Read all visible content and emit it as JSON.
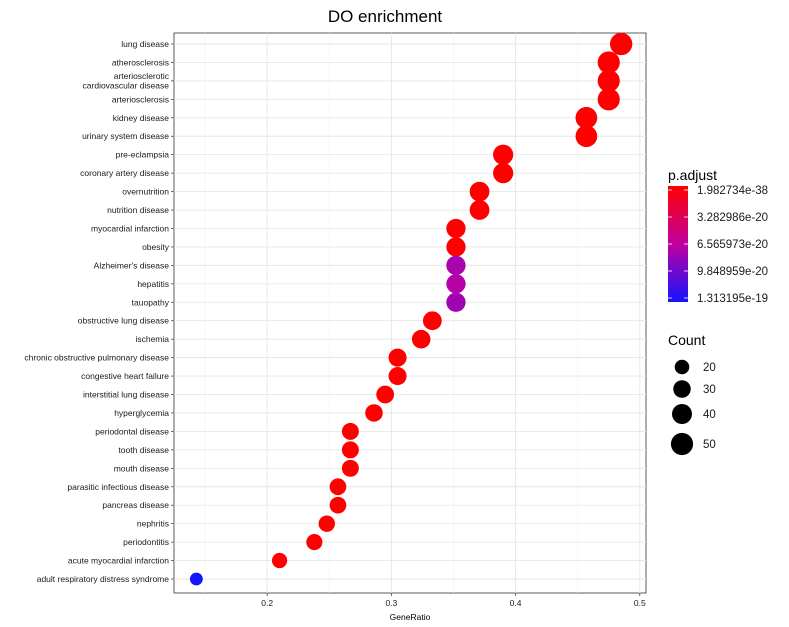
{
  "chart_data": {
    "type": "scatter",
    "title": "DO enrichment",
    "xlabel": "GeneRatio",
    "ylabel": "",
    "xlim": [
      0.125,
      0.505
    ],
    "xticks": [
      0.2,
      0.3,
      0.4,
      0.5
    ],
    "xtick_labels": [
      "0.2",
      "0.3",
      "0.4",
      "0.5"
    ],
    "grid": true,
    "categories": [
      "lung disease",
      "atherosclerosis",
      "arteriosclerotic\ncardiovascular disease",
      "arteriosclerosis",
      "kidney disease",
      "urinary system disease",
      "pre-eclampsia",
      "coronary artery disease",
      "overnutrition",
      "nutrition disease",
      "myocardial infarction",
      "obesity",
      "Alzheimer's disease",
      "hepatitis",
      "tauopathy",
      "obstructive lung disease",
      "ischemia",
      "chronic obstructive pulmonary disease",
      "congestive heart failure",
      "interstitial lung disease",
      "hyperglycemia",
      "periodontal disease",
      "tooth disease",
      "mouth disease",
      "parasitic infectious disease",
      "pancreas disease",
      "nephritis",
      "periodontitis",
      "acute myocardial infarction",
      "adult respiratory distress syndrome"
    ],
    "x": [
      0.485,
      0.475,
      0.475,
      0.475,
      0.457,
      0.457,
      0.39,
      0.39,
      0.371,
      0.371,
      0.352,
      0.352,
      0.352,
      0.352,
      0.352,
      0.333,
      0.324,
      0.305,
      0.305,
      0.295,
      0.286,
      0.267,
      0.267,
      0.267,
      0.257,
      0.257,
      0.248,
      0.238,
      0.21,
      0.143
    ],
    "count": [
      51,
      50,
      50,
      50,
      48,
      48,
      41,
      41,
      39,
      39,
      37,
      37,
      37,
      37,
      37,
      35,
      34,
      32,
      32,
      31,
      30,
      28,
      28,
      28,
      27,
      27,
      26,
      25,
      22,
      15
    ],
    "p_adjust": [
      2e-38,
      2e-38,
      2e-38,
      2e-38,
      2e-38,
      2e-38,
      2e-38,
      2e-38,
      2e-38,
      2e-38,
      2e-38,
      2e-38,
      7.5e-20,
      7e-20,
      7.8e-20,
      2e-38,
      2e-38,
      2e-38,
      2e-38,
      2e-38,
      2e-38,
      2e-38,
      2e-38,
      2e-38,
      2e-38,
      2e-38,
      2e-38,
      2e-38,
      2e-38,
      1.313195e-19
    ],
    "color_legend": {
      "title": "p.adjust",
      "labels": [
        "1.982734e-38",
        "3.282986e-20",
        "6.565973e-20",
        "9.848959e-20",
        "1.313195e-19"
      ],
      "low_color": "#ff0000",
      "high_color": "#0000ff",
      "min": 1.982734e-38,
      "max": 1.313195e-19
    },
    "size_legend": {
      "title": "Count",
      "labels": [
        "20",
        "30",
        "40",
        "50"
      ],
      "values": [
        20,
        30,
        40,
        50
      ]
    },
    "legend_position": "right"
  }
}
